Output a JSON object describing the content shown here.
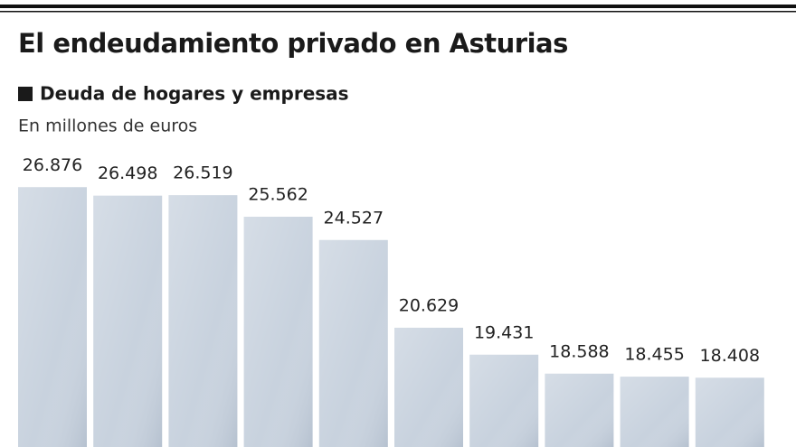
{
  "chart_data": {
    "type": "bar",
    "title": "El endeudamiento privado en Asturias",
    "subtitle": "Deuda de hogares y empresas",
    "y_label": "En millones de euros",
    "categories": [
      null,
      null,
      null,
      null,
      null,
      null,
      null,
      null,
      null,
      null
    ],
    "values": [
      26876,
      26498,
      26519,
      25562,
      24527,
      20629,
      19431,
      18588,
      18455,
      18408
    ],
    "value_labels": [
      "26.876",
      "26.498",
      "26.519",
      "25.562",
      "24.527",
      "20.629",
      "19.431",
      "18.588",
      "18.455",
      "18.408"
    ],
    "color": "#c8d2de"
  }
}
